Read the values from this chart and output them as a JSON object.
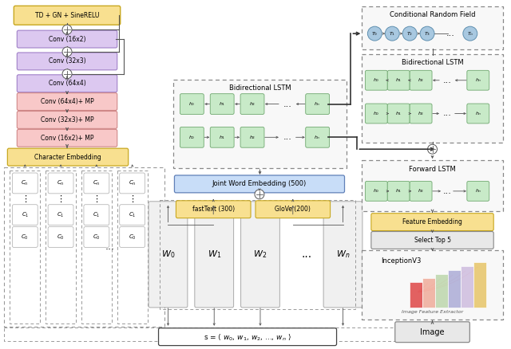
{
  "bg_color": "#ffffff",
  "green_color": "#c8eac8",
  "green_ec": "#70a870",
  "blue_node_color": "#a8c8e0",
  "blue_node_ec": "#6090b0",
  "purple_color": "#dcc8f0",
  "purple_ec": "#a080c8",
  "pink_color": "#f8c8c8",
  "pink_ec": "#d08888",
  "yellow_color": "#f8e090",
  "yellow_ec": "#c8a820",
  "blue_box_color": "#c8ddf8",
  "blue_box_ec": "#6080b8",
  "gray_color": "#e8e8e8",
  "gray_ec": "#888888",
  "conv_labels": [
    "Conv (16x2)",
    "Conv (32x3)",
    "Conv (64x4)",
    "Conv (64x4)+ MP",
    "Conv (32x3)+ MP",
    "Conv (16x2)+ MP"
  ]
}
